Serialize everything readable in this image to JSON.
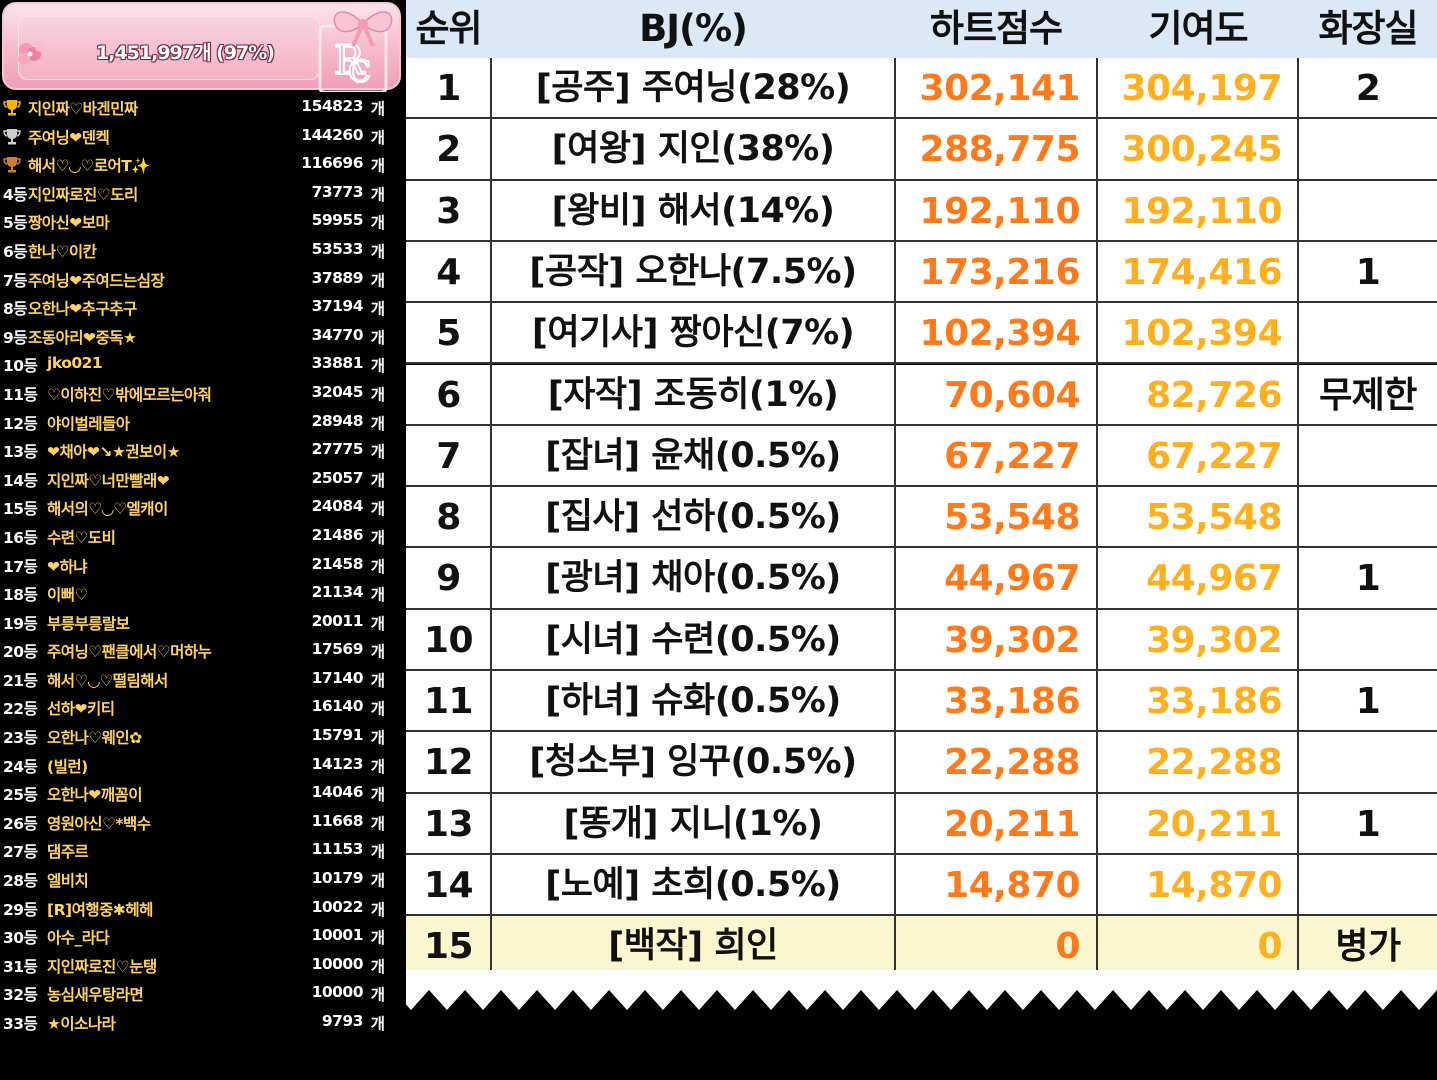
{
  "banner": {
    "text": "1,451,997개 (97%)"
  },
  "leaderboard": [
    {
      "rank": "",
      "trophy": "gold",
      "name": "지인짜♡바겐민짜",
      "count": "154823",
      "unit": "개"
    },
    {
      "rank": "",
      "trophy": "silver",
      "name": "주여닝❤덴켁",
      "count": "144260",
      "unit": "개"
    },
    {
      "rank": "",
      "trophy": "bronze",
      "name": "해서♡◡♡로어T✨",
      "count": "116696",
      "unit": "개"
    },
    {
      "rank": "4등",
      "name": "지인짜로진♡도리",
      "count": "73773",
      "unit": "개"
    },
    {
      "rank": "5등",
      "name": "짱아신❤보마",
      "count": "59955",
      "unit": "개"
    },
    {
      "rank": "6등",
      "name": "한나♡이칸",
      "count": "53533",
      "unit": "개"
    },
    {
      "rank": "7등",
      "name": "주여닝❤주여드는심장",
      "count": "37889",
      "unit": "개"
    },
    {
      "rank": "8등",
      "name": "오한나❤추구추구",
      "count": "37194",
      "unit": "개"
    },
    {
      "rank": "9등",
      "name": "조동아리❤중독★",
      "count": "34770",
      "unit": "개"
    },
    {
      "rank": "10등",
      "name": "jko021",
      "count": "33881",
      "unit": "개"
    },
    {
      "rank": "11등",
      "name": "♡이하진♡밖에모르는아줘",
      "count": "32045",
      "unit": "개"
    },
    {
      "rank": "12등",
      "name": "야이벌레들아",
      "count": "28948",
      "unit": "개"
    },
    {
      "rank": "13등",
      "name": "❤채아❤↘★권보이★",
      "count": "27775",
      "unit": "개"
    },
    {
      "rank": "14등",
      "name": "지인짜♡너만빨래❤",
      "count": "25057",
      "unit": "개"
    },
    {
      "rank": "15등",
      "name": "해서의♡◡♡엘캐이",
      "count": "24084",
      "unit": "개"
    },
    {
      "rank": "16등",
      "name": "수련♡도비",
      "count": "21486",
      "unit": "개"
    },
    {
      "rank": "17등",
      "name": "❤하냐",
      "count": "21458",
      "unit": "개"
    },
    {
      "rank": "18등",
      "name": "이뻐♡",
      "count": "21134",
      "unit": "개"
    },
    {
      "rank": "19등",
      "name": "부릉부릉랄보",
      "count": "20011",
      "unit": "개"
    },
    {
      "rank": "20등",
      "name": "주여닝♡팬클에서♡머하누",
      "count": "17569",
      "unit": "개"
    },
    {
      "rank": "21등",
      "name": "해서♡◡♡떨림해서",
      "count": "17140",
      "unit": "개"
    },
    {
      "rank": "22등",
      "name": "선하❤키티",
      "count": "16140",
      "unit": "개"
    },
    {
      "rank": "23등",
      "name": "오한나♡웨인✿",
      "count": "15791",
      "unit": "개"
    },
    {
      "rank": "24등",
      "name": "(빌런)",
      "count": "14123",
      "unit": "개"
    },
    {
      "rank": "25등",
      "name": "오한나❤깨꼼이",
      "count": "14046",
      "unit": "개"
    },
    {
      "rank": "26등",
      "name": "영원아신♡*백수",
      "count": "11668",
      "unit": "개"
    },
    {
      "rank": "27등",
      "name": "댐주르",
      "count": "11153",
      "unit": "개"
    },
    {
      "rank": "28등",
      "name": "엘비치",
      "count": "10179",
      "unit": "개"
    },
    {
      "rank": "29등",
      "name": "[R]여행중✱헤헤",
      "count": "10022",
      "unit": "개"
    },
    {
      "rank": "30등",
      "name": "아수_라다",
      "count": "10001",
      "unit": "개"
    },
    {
      "rank": "31등",
      "name": "지인짜로진♡눈탱",
      "count": "10000",
      "unit": "개"
    },
    {
      "rank": "32등",
      "name": "농심새우탕라면",
      "count": "10000",
      "unit": "개"
    },
    {
      "rank": "33등",
      "name": "★이소나라",
      "count": "9793",
      "unit": "개"
    }
  ],
  "table": {
    "headers": {
      "rank": "순위",
      "bj": "BJ(%)",
      "heart": "하트점수",
      "contrib": "기여도",
      "toilet": "화장실"
    },
    "rows": [
      {
        "rank": "1",
        "bj": "[공주] 주여닝(28%)",
        "heart": "302,141",
        "contrib": "304,197",
        "toilet": "2"
      },
      {
        "rank": "2",
        "bj": "[여왕] 지인(38%)",
        "heart": "288,775",
        "contrib": "300,245",
        "toilet": ""
      },
      {
        "rank": "3",
        "bj": "[왕비] 해서(14%)",
        "heart": "192,110",
        "contrib": "192,110",
        "toilet": ""
      },
      {
        "rank": "4",
        "bj": "[공작] 오한나(7.5%)",
        "heart": "173,216",
        "contrib": "174,416",
        "toilet": "1"
      },
      {
        "rank": "5",
        "bj": "[여기사] 짱아신(7%)",
        "heart": "102,394",
        "contrib": "102,394",
        "toilet": ""
      },
      {
        "rank": "6",
        "bj": "[자작] 조동히(1%)",
        "heart": "70,604",
        "contrib": "82,726",
        "toilet": "무제한"
      },
      {
        "rank": "7",
        "bj": "[잡녀] 윤채(0.5%)",
        "heart": "67,227",
        "contrib": "67,227",
        "toilet": ""
      },
      {
        "rank": "8",
        "bj": "[집사] 선하(0.5%)",
        "heart": "53,548",
        "contrib": "53,548",
        "toilet": ""
      },
      {
        "rank": "9",
        "bj": "[광녀] 채아(0.5%)",
        "heart": "44,967",
        "contrib": "44,967",
        "toilet": "1"
      },
      {
        "rank": "10",
        "bj": "[시녀] 수련(0.5%)",
        "heart": "39,302",
        "contrib": "39,302",
        "toilet": ""
      },
      {
        "rank": "11",
        "bj": "[하녀] 슈화(0.5%)",
        "heart": "33,186",
        "contrib": "33,186",
        "toilet": "1"
      },
      {
        "rank": "12",
        "bj": "[청소부] 잉꾸(0.5%)",
        "heart": "22,288",
        "contrib": "22,288",
        "toilet": ""
      },
      {
        "rank": "13",
        "bj": "[똥개] 지니(1%)",
        "heart": "20,211",
        "contrib": "20,211",
        "toilet": "1"
      },
      {
        "rank": "14",
        "bj": "[노예] 초희(0.5%)",
        "heart": "14,870",
        "contrib": "14,870",
        "toilet": ""
      },
      {
        "rank": "15",
        "bj": "[백작] 희인",
        "heart": "0",
        "contrib": "0",
        "toilet": "병가"
      }
    ]
  },
  "colors": {
    "heart": "#ff7a1a",
    "contrib": "#ffb020",
    "header_bg": "#dbe9f7",
    "highlight_row": "#fbf6cd",
    "gold": "#ffd166"
  }
}
